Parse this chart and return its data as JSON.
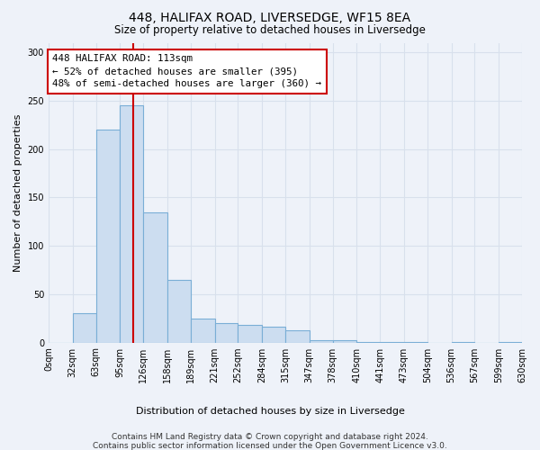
{
  "title": "448, HALIFAX ROAD, LIVERSEDGE, WF15 8EA",
  "subtitle": "Size of property relative to detached houses in Liversedge",
  "xlabel": "Distribution of detached houses by size in Liversedge",
  "ylabel": "Number of detached properties",
  "footer_line1": "Contains HM Land Registry data © Crown copyright and database right 2024.",
  "footer_line2": "Contains public sector information licensed under the Open Government Licence v3.0.",
  "bin_edges": [
    0,
    32,
    63,
    95,
    126,
    158,
    189,
    221,
    252,
    284,
    315,
    347,
    378,
    410,
    441,
    473,
    504,
    536,
    567,
    599,
    630
  ],
  "bar_heights": [
    0,
    30,
    220,
    245,
    135,
    65,
    25,
    20,
    18,
    16,
    13,
    2,
    2,
    1,
    1,
    1,
    0,
    1,
    0,
    1
  ],
  "bar_color": "#ccddf0",
  "bar_edge_color": "#7aaed6",
  "property_size": 113,
  "vline_color": "#cc0000",
  "annotation_text": "448 HALIFAX ROAD: 113sqm\n← 52% of detached houses are smaller (395)\n48% of semi-detached houses are larger (360) →",
  "annotation_box_color": "#ffffff",
  "annotation_box_edge": "#cc0000",
  "bg_color": "#eef2f9",
  "grid_color": "#d8e0ec",
  "ylim": [
    0,
    310
  ],
  "yticks": [
    0,
    50,
    100,
    150,
    200,
    250,
    300
  ]
}
